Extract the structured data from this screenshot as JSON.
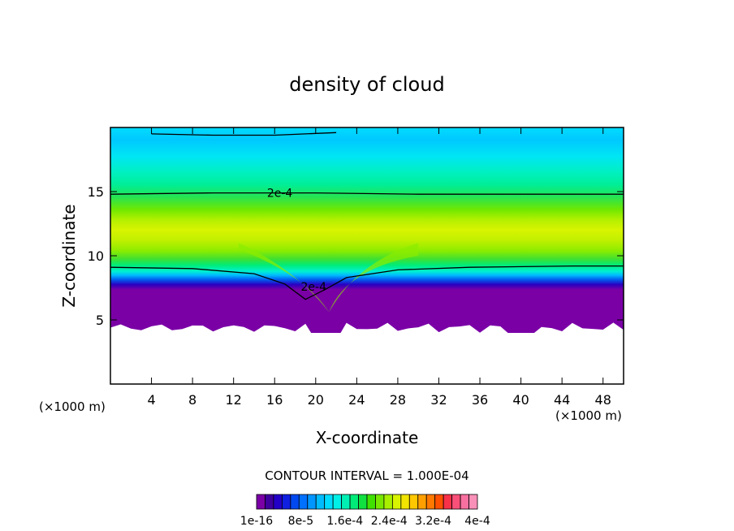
{
  "chart_data": {
    "type": "heatmap",
    "title": "density of cloud",
    "xlabel": "X-coordinate",
    "ylabel": "Z-coordinate",
    "x_unit": "(×1000 m)",
    "y_unit": "(×1000 m)",
    "xlim": [
      0,
      50
    ],
    "ylim": [
      0,
      20
    ],
    "x_ticks": [
      4,
      8,
      12,
      16,
      20,
      24,
      28,
      32,
      36,
      40,
      44,
      48
    ],
    "y_ticks": [
      5,
      10,
      15
    ],
    "grid": false,
    "contour_interval_text": "CONTOUR INTERVAL = 1.000E-04",
    "contour_labels": [
      {
        "text": "2e-4",
        "x": 16.5,
        "z": 14.9
      },
      {
        "text": "2e-4",
        "x": 19.8,
        "z": 7.6
      }
    ],
    "colorbar": {
      "colors": [
        "#7a00a6",
        "#3e009e",
        "#2300c8",
        "#1020e0",
        "#0048f0",
        "#0070ff",
        "#0096ff",
        "#00bcff",
        "#00dcff",
        "#00f0e8",
        "#00f0b4",
        "#00ec78",
        "#10e040",
        "#40e000",
        "#78e800",
        "#a8f000",
        "#d8f400",
        "#f0e400",
        "#ffc800",
        "#ffa000",
        "#ff7800",
        "#ff5000",
        "#f83048",
        "#f85078",
        "#f870a0",
        "#f890b8"
      ],
      "tick_labels": [
        "1e-16",
        "8e-5",
        "1.6e-4",
        "2.4e-4",
        "3.2e-4",
        "4e-4"
      ],
      "min": 1e-16,
      "max": 0.0004
    }
  }
}
